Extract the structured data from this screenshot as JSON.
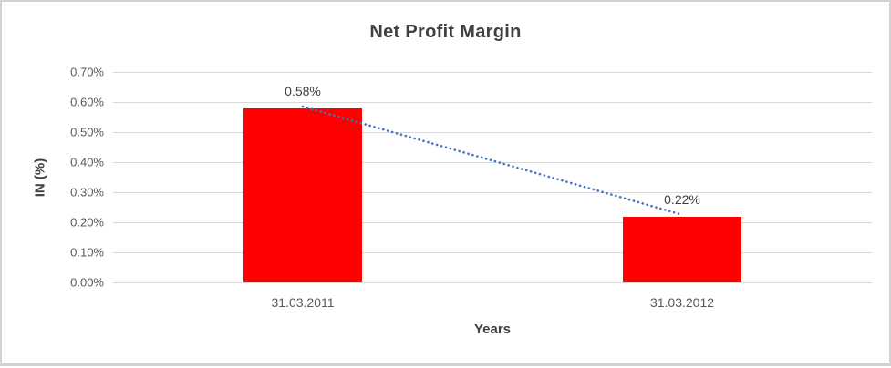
{
  "chart": {
    "title": "Net Profit Margin",
    "y_axis_title": "IN (%)",
    "x_axis_title": "Years",
    "colors": {
      "bar": "#FF0000",
      "trendline": "#4472C4",
      "gridline": "#D9D9D9",
      "title_text": "#404040",
      "tick_text": "#595959",
      "frame_border": "#D2D2D2"
    }
  },
  "chart_data": {
    "type": "bar",
    "title": "Net Profit Margin",
    "xlabel": "Years",
    "ylabel": "IN (%)",
    "categories": [
      "31.03.2011",
      "31.03.2012"
    ],
    "values": [
      0.58,
      0.22
    ],
    "data_labels": [
      "0.58%",
      "0.22%"
    ],
    "y_ticks": [
      "0.70%",
      "0.60%",
      "0.50%",
      "0.40%",
      "0.30%",
      "0.20%",
      "0.10%",
      "0.00%"
    ],
    "ylim": [
      0,
      0.7
    ],
    "grid": true,
    "legend": "none",
    "bar_color": "#FF0000",
    "trendline": {
      "type": "linear",
      "style": "dotted",
      "color": "#4472C4"
    }
  }
}
